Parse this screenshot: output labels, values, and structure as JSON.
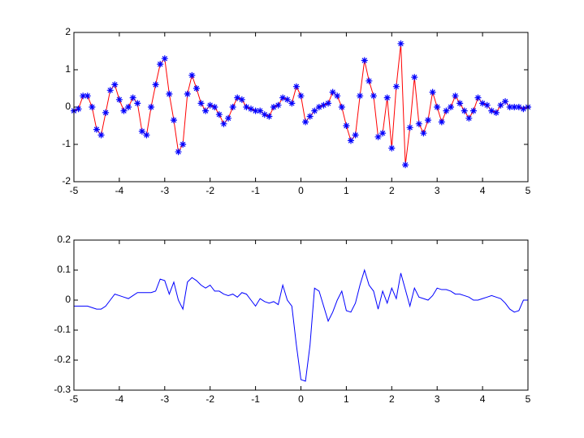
{
  "chart_data": [
    {
      "type": "line",
      "x": [
        -5,
        -4.9,
        -4.8,
        -4.7,
        -4.6,
        -4.5,
        -4.4,
        -4.3,
        -4.2,
        -4.1,
        -4,
        -3.9,
        -3.8,
        -3.7,
        -3.6,
        -3.5,
        -3.4,
        -3.3,
        -3.2,
        -3.1,
        -3,
        -2.9,
        -2.8,
        -2.7,
        -2.6,
        -2.5,
        -2.4,
        -2.3,
        -2.2,
        -2.1,
        -2,
        -1.9,
        -1.8,
        -1.7,
        -1.6,
        -1.5,
        -1.4,
        -1.3,
        -1.2,
        -1.1,
        -1,
        -0.9,
        -0.8,
        -0.7,
        -0.6,
        -0.5,
        -0.4,
        -0.3,
        -0.2,
        -0.1,
        0,
        0.1,
        0.2,
        0.3,
        0.4,
        0.5,
        0.6,
        0.7,
        0.8,
        0.9,
        1,
        1.1,
        1.2,
        1.3,
        1.4,
        1.5,
        1.6,
        1.7,
        1.8,
        1.9,
        2,
        2.1,
        2.2,
        2.3,
        2.4,
        2.5,
        2.6,
        2.7,
        2.8,
        2.9,
        3,
        3.1,
        3.2,
        3.3,
        3.4,
        3.5,
        3.6,
        3.7,
        3.8,
        3.9,
        4,
        4.1,
        4.2,
        4.3,
        4.4,
        4.5,
        4.6,
        4.7,
        4.8,
        4.9,
        5
      ],
      "series": [
        {
          "color": "#ff0000",
          "marker": "*",
          "marker_color": "#0000ff",
          "values": [
            -0.1,
            -0.05,
            0.3,
            0.3,
            0,
            -0.6,
            -0.75,
            -0.15,
            0.45,
            0.6,
            0.2,
            -0.1,
            0,
            0.25,
            0.1,
            -0.65,
            -0.75,
            0,
            0.6,
            1.15,
            1.3,
            0.35,
            -0.35,
            -1.2,
            -1,
            0.35,
            0.85,
            0.5,
            0.1,
            -0.1,
            0.05,
            0,
            -0.2,
            -0.45,
            -0.3,
            0,
            0.25,
            0.2,
            0,
            -0.05,
            -0.1,
            -0.1,
            -0.2,
            -0.25,
            0,
            0.05,
            0.25,
            0.2,
            0.1,
            0.55,
            0.3,
            -0.4,
            -0.25,
            -0.1,
            0,
            0.05,
            0.1,
            0.4,
            0.3,
            0,
            -0.5,
            -0.9,
            -0.75,
            0.3,
            1.25,
            0.7,
            0.3,
            -0.8,
            -0.7,
            0.25,
            -1.1,
            0.55,
            1.7,
            -1.55,
            -0.55,
            0.8,
            -0.45,
            -0.7,
            -0.35,
            0.4,
            0,
            -0.4,
            -0.1,
            0,
            0.3,
            0.1,
            -0.1,
            -0.3,
            -0.1,
            0.25,
            0.1,
            0.05,
            -0.1,
            -0.15,
            0.05,
            0.15,
            0,
            0,
            0,
            -0.05,
            0
          ]
        }
      ],
      "xlim": [
        -5,
        5
      ],
      "xticks": [
        -5,
        -4,
        -3,
        -2,
        -1,
        0,
        1,
        2,
        3,
        4,
        5
      ],
      "ylim": [
        -2,
        2
      ],
      "yticks": [
        -2,
        -1,
        0,
        1,
        2
      ]
    },
    {
      "type": "line",
      "x": [
        -5,
        -4.9,
        -4.8,
        -4.7,
        -4.6,
        -4.5,
        -4.4,
        -4.3,
        -4.2,
        -4.1,
        -4,
        -3.9,
        -3.8,
        -3.7,
        -3.6,
        -3.5,
        -3.4,
        -3.3,
        -3.2,
        -3.1,
        -3,
        -2.9,
        -2.8,
        -2.7,
        -2.6,
        -2.5,
        -2.4,
        -2.3,
        -2.2,
        -2.1,
        -2,
        -1.9,
        -1.8,
        -1.7,
        -1.6,
        -1.5,
        -1.4,
        -1.3,
        -1.2,
        -1.1,
        -1,
        -0.9,
        -0.8,
        -0.7,
        -0.6,
        -0.5,
        -0.4,
        -0.3,
        -0.2,
        -0.1,
        0,
        0.1,
        0.2,
        0.3,
        0.4,
        0.5,
        0.6,
        0.7,
        0.8,
        0.9,
        1,
        1.1,
        1.2,
        1.3,
        1.4,
        1.5,
        1.6,
        1.7,
        1.8,
        1.9,
        2,
        2.1,
        2.2,
        2.3,
        2.4,
        2.5,
        2.6,
        2.7,
        2.8,
        2.9,
        3,
        3.1,
        3.2,
        3.3,
        3.4,
        3.5,
        3.6,
        3.7,
        3.8,
        3.9,
        4,
        4.1,
        4.2,
        4.3,
        4.4,
        4.5,
        4.6,
        4.7,
        4.8,
        4.9,
        5
      ],
      "series": [
        {
          "color": "#0000ff",
          "values": [
            -0.02,
            -0.02,
            -0.02,
            -0.02,
            -0.025,
            -0.03,
            -0.03,
            -0.02,
            0,
            0.02,
            0.015,
            0.01,
            0.005,
            0.015,
            0.025,
            0.025,
            0.025,
            0.025,
            0.03,
            0.07,
            0.065,
            0.02,
            0.06,
            0,
            -0.03,
            0.06,
            0.075,
            0.065,
            0.05,
            0.04,
            0.05,
            0.03,
            0.03,
            0.02,
            0.015,
            0.02,
            0.01,
            0.025,
            0.02,
            0,
            -0.02,
            0.005,
            -0.005,
            -0.01,
            -0.005,
            -0.015,
            0.05,
            0,
            -0.02,
            -0.15,
            -0.265,
            -0.27,
            -0.15,
            0.04,
            0.03,
            -0.02,
            -0.07,
            -0.04,
            0,
            0.03,
            -0.035,
            -0.04,
            -0.01,
            0.05,
            0.1,
            0.05,
            0.03,
            -0.03,
            0.03,
            -0.01,
            0.04,
            0.005,
            0.09,
            0.035,
            -0.02,
            0.04,
            0.01,
            0.005,
            0,
            0.015,
            0.04,
            0.035,
            0.035,
            0.03,
            0.02,
            0.02,
            0.015,
            0.01,
            0,
            0,
            0.005,
            0.01,
            0.015,
            0.01,
            0.005,
            -0.01,
            -0.03,
            -0.04,
            -0.035,
            0,
            0
          ]
        }
      ],
      "xlim": [
        -5,
        5
      ],
      "xticks": [
        -5,
        -4,
        -3,
        -2,
        -1,
        0,
        1,
        2,
        3,
        4,
        5
      ],
      "ylim": [
        -0.3,
        0.2
      ],
      "yticks": [
        -0.3,
        -0.2,
        -0.1,
        0,
        0.1,
        0.2
      ]
    }
  ]
}
